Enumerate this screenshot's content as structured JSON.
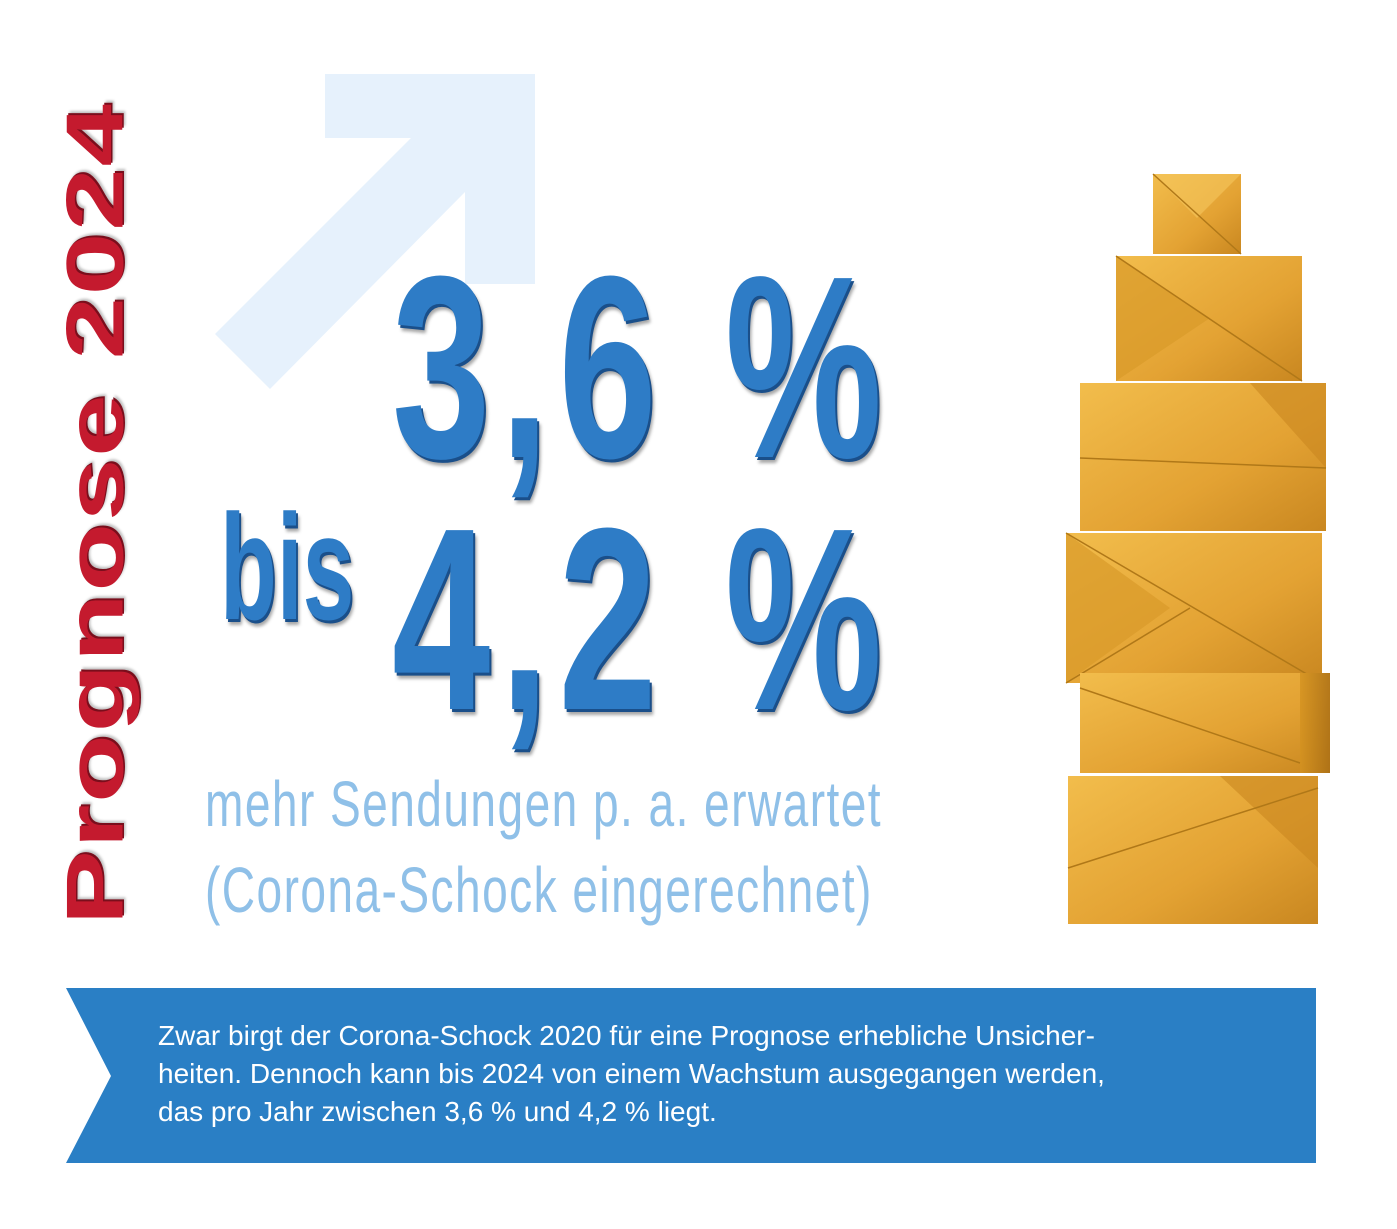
{
  "title": "Prognose 2024",
  "range": {
    "low": "3,6 %",
    "connector": "bis",
    "high": "4,2 %"
  },
  "caption": {
    "line1": "mehr Sendungen p. a. erwartet",
    "line2": "(Corona-Schock eingerechnet)"
  },
  "banner": {
    "line1": "Zwar birgt der Corona-Schock 2020 für eine Prognose erhebliche Unsicher-",
    "line2": "heiten. Dennoch kann bis 2024 von einem Wachstum ausgegangen werden,",
    "line3": "das pro Jahr zwischen 3,6 % und 4,2 % liegt."
  },
  "colors": {
    "title_red": "#c41a2e",
    "number_blue": "#2e7cc6",
    "caption_light_blue": "#8fc0e8",
    "banner_blue": "#2a7fc5",
    "arrow_pale_blue": "#e6f1fc",
    "parcel_gold": "#e8a93a"
  },
  "icons": {
    "arrow": "arrow-up-right-icon",
    "parcels": "stacked-parcels-image"
  }
}
